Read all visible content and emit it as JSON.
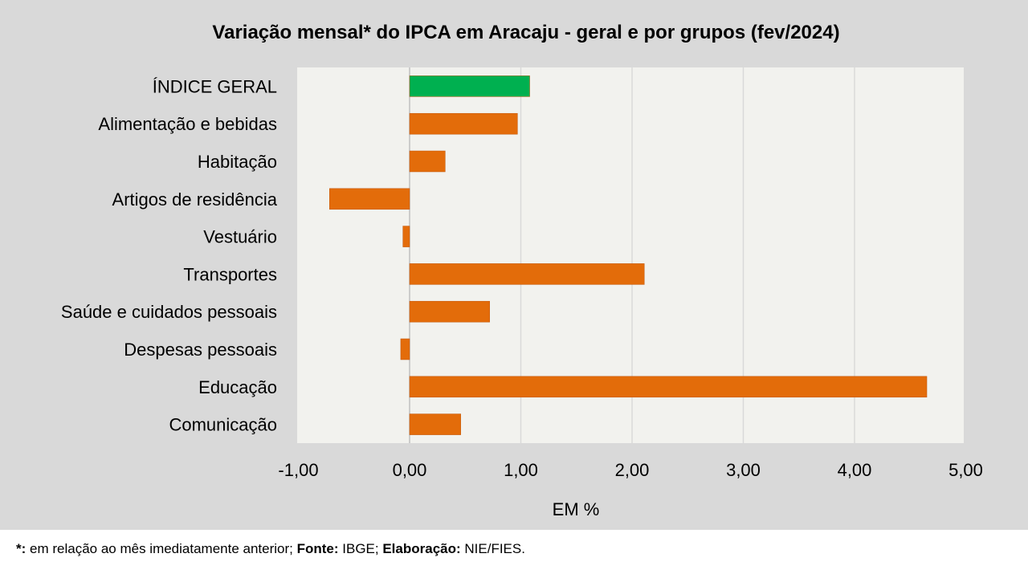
{
  "chart_data": {
    "type": "bar",
    "orientation": "horizontal",
    "title": "Variação  mensal*  do IPCA em Aracaju  - geral e por grupos  (fev/2024)",
    "xlabel": "EM %",
    "ylabel": "",
    "categories": [
      "ÍNDICE GERAL",
      "Alimentação e bebidas",
      "Habitação",
      "Artigos de residência",
      "Vestuário",
      "Transportes",
      "Saúde e cuidados pessoais",
      "Despesas pessoais",
      "Educação",
      "Comunicação"
    ],
    "values": [
      1.08,
      0.97,
      0.32,
      -0.72,
      -0.06,
      2.11,
      0.72,
      -0.08,
      4.65,
      0.46
    ],
    "xlim": [
      -1.0,
      5.0
    ],
    "ticks": [
      -1,
      0,
      1,
      2,
      3,
      4,
      5
    ],
    "tick_labels": [
      "-1,00",
      "0,00",
      "1,00",
      "2,00",
      "3,00",
      "4,00",
      "5,00"
    ],
    "grid": true,
    "highlight_index": 0,
    "colors": {
      "highlight": "#00b050",
      "bar": "#e36c0a",
      "plot_bg": "#f2f2ee",
      "slide_bg": "#d9d9d9",
      "grid": "#d9d9d9"
    }
  },
  "footnote": {
    "mark": "*:",
    "text1": " em relação ao mês imediatamente  anterior; ",
    "fonte_label": "Fonte:",
    "fonte_value": " IBGE; ",
    "elab_label": "Elaboração:",
    "elab_value": " NIE/FIES."
  }
}
